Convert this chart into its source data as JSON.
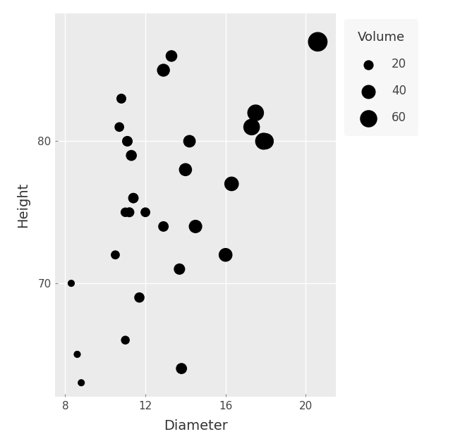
{
  "diameter": [
    8.3,
    8.6,
    8.8,
    10.5,
    10.7,
    10.8,
    11.0,
    11.0,
    11.1,
    11.2,
    11.3,
    11.4,
    11.4,
    11.7,
    12.0,
    12.9,
    12.9,
    13.3,
    13.7,
    13.8,
    14.0,
    14.2,
    14.5,
    16.0,
    16.3,
    17.3,
    17.5,
    17.9,
    18.0,
    18.0,
    20.6
  ],
  "height": [
    70,
    65,
    63,
    72,
    81,
    83,
    66,
    75,
    80,
    75,
    79,
    76,
    76,
    69,
    75,
    74,
    85,
    86,
    71,
    64,
    78,
    80,
    74,
    72,
    77,
    81,
    82,
    80,
    80,
    80,
    87
  ],
  "volume": [
    10.3,
    10.3,
    10.2,
    16.4,
    18.8,
    19.7,
    15.6,
    18.2,
    22.6,
    19.9,
    24.2,
    21.0,
    21.4,
    21.3,
    19.1,
    22.2,
    33.8,
    27.4,
    25.7,
    24.9,
    34.5,
    31.7,
    36.3,
    38.3,
    42.6,
    55.4,
    55.7,
    58.3,
    51.5,
    51.0,
    77.0
  ],
  "bg_color": "#ebebeb",
  "legend_bg_color": "#f5f5f5",
  "point_color": "#000000",
  "xlabel": "Diameter",
  "ylabel": "Height",
  "legend_title": "Volume",
  "legend_values": [
    20,
    40,
    60
  ],
  "size_scale": 400,
  "xlim": [
    7.5,
    21.5
  ],
  "ylim": [
    62,
    89
  ],
  "xticks": [
    8,
    12,
    16,
    20
  ],
  "yticks": [
    70,
    80
  ],
  "grid_color": "#ffffff",
  "axis_label_fontsize": 14,
  "tick_fontsize": 11,
  "legend_fontsize": 12,
  "legend_title_fontsize": 13
}
